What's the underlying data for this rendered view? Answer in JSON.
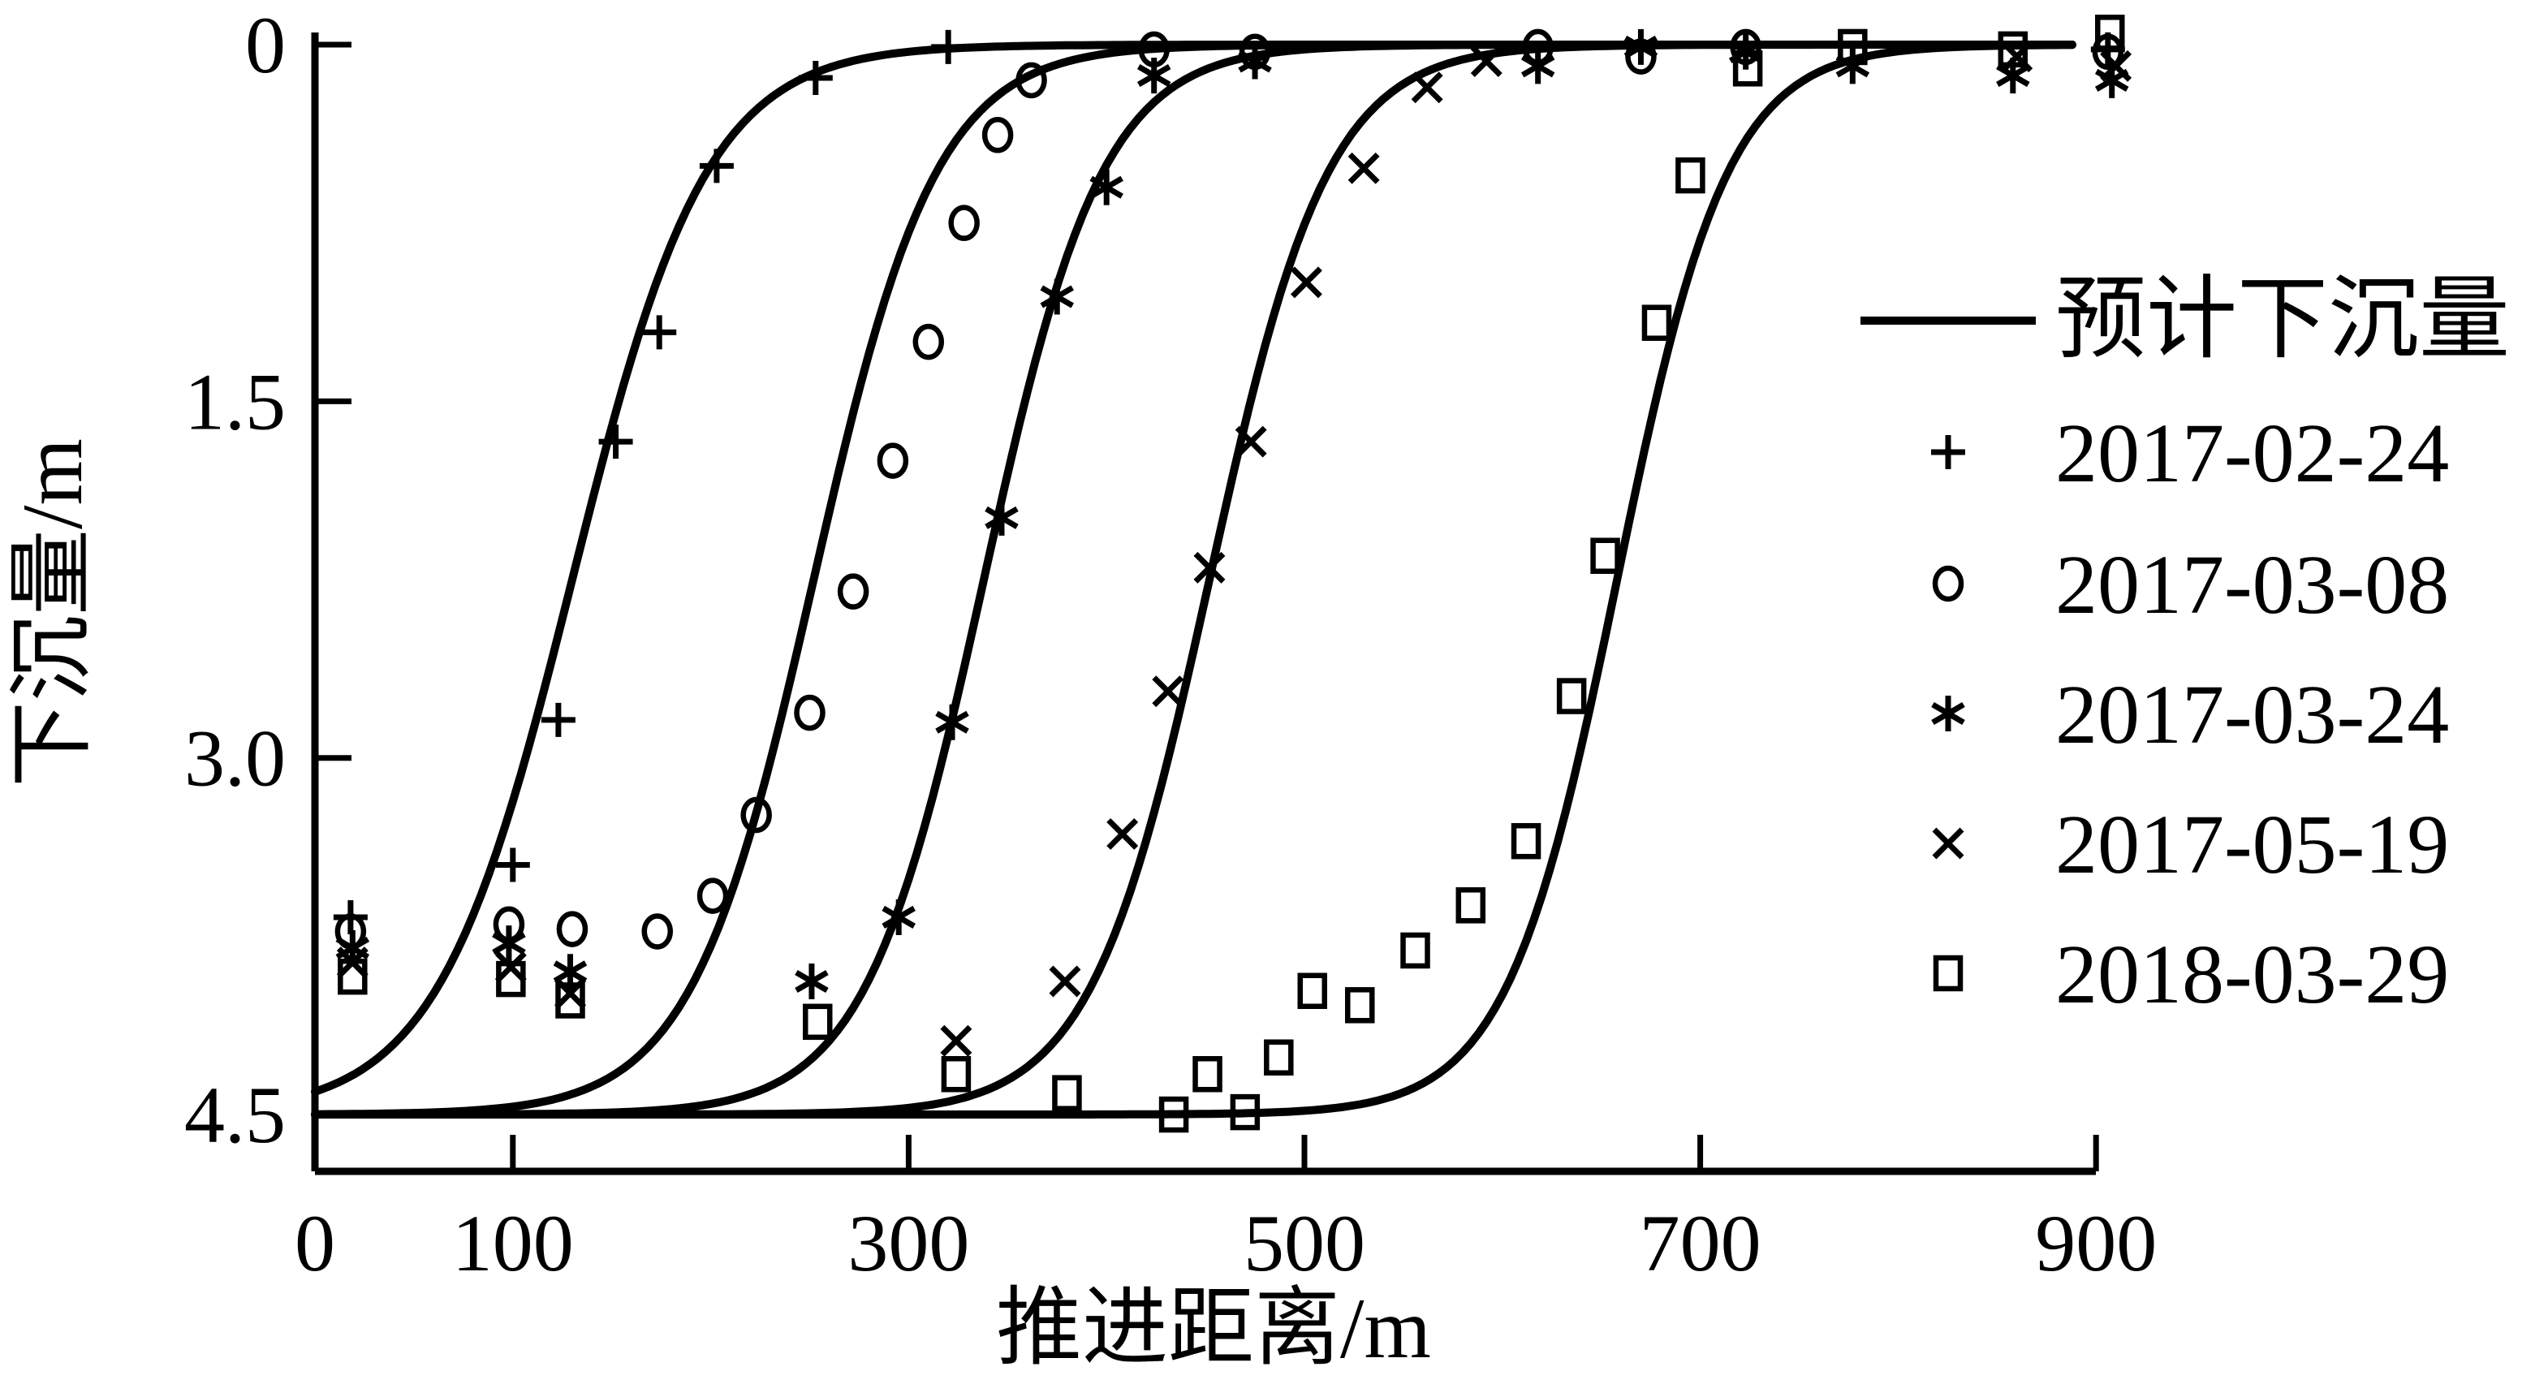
{
  "chart_data": {
    "type": "line",
    "title": "",
    "xlabel": "推进距离/m",
    "ylabel": "下沉量/m",
    "xlim": [
      0,
      910
    ],
    "ylim": [
      0,
      4.5
    ],
    "y_inverted": true,
    "grid": false,
    "legend_position": "right",
    "x_ticks": {
      "values": [
        0,
        100,
        300,
        500,
        700,
        900
      ],
      "labels": [
        "0",
        "100",
        "300",
        "500",
        "700",
        "900"
      ]
    },
    "y_ticks": {
      "values": [
        0,
        1.5,
        3.0,
        4.5
      ],
      "labels": [
        "0",
        "1.5",
        "3.0",
        "4.5"
      ]
    },
    "curves": {
      "name": "预计下沉量",
      "style": "solid",
      "amplitude": 4.5,
      "sigmoids": [
        {
          "x0": 130,
          "k": 34
        },
        {
          "x0": 252,
          "k": 31
        },
        {
          "x0": 338,
          "k": 30
        },
        {
          "x0": 452,
          "k": 30
        },
        {
          "x0": 658,
          "k": 28
        }
      ]
    },
    "series": [
      {
        "name": "2017-02-24",
        "marker": "plus",
        "points": [
          [
            18,
            3.67
          ],
          [
            100,
            3.45
          ],
          [
            123,
            2.84
          ],
          [
            152,
            1.67
          ],
          [
            174,
            1.21
          ],
          [
            203,
            0.51
          ],
          [
            253,
            0.14
          ],
          [
            320,
            0.01
          ],
          [
            906,
            0.02
          ]
        ]
      },
      {
        "name": "2017-03-08",
        "marker": "circle",
        "points": [
          [
            18,
            3.73
          ],
          [
            98,
            3.7
          ],
          [
            130,
            3.72
          ],
          [
            173,
            3.73
          ],
          [
            201,
            3.58
          ],
          [
            223,
            3.24
          ],
          [
            250,
            2.81
          ],
          [
            272,
            2.3
          ],
          [
            292,
            1.75
          ],
          [
            310,
            1.25
          ],
          [
            328,
            0.75
          ],
          [
            345,
            0.38
          ],
          [
            362,
            0.15
          ],
          [
            424,
            0.02
          ],
          [
            475,
            0.03
          ],
          [
            618,
            0.01
          ],
          [
            670,
            0.05
          ],
          [
            723,
            0.01
          ],
          [
            906,
            0.03
          ]
        ]
      },
      {
        "name": "2017-03-24",
        "marker": "asterisk",
        "points": [
          [
            19,
            3.8
          ],
          [
            98,
            3.78
          ],
          [
            129,
            3.9
          ],
          [
            251,
            3.94
          ],
          [
            295,
            3.67
          ],
          [
            322,
            2.85
          ],
          [
            347,
            1.99
          ],
          [
            375,
            1.06
          ],
          [
            400,
            0.6
          ],
          [
            424,
            0.13
          ],
          [
            475,
            0.07
          ],
          [
            618,
            0.09
          ],
          [
            670,
            0.01
          ],
          [
            723,
            0.03
          ],
          [
            777,
            0.09
          ],
          [
            858,
            0.13
          ],
          [
            908,
            0.15
          ]
        ]
      },
      {
        "name": "2017-05-19",
        "marker": "cross",
        "points": [
          [
            19,
            3.86
          ],
          [
            99,
            3.88
          ],
          [
            129,
            3.99
          ],
          [
            324,
            4.19
          ],
          [
            379,
            3.94
          ],
          [
            408,
            3.32
          ],
          [
            431,
            2.72
          ],
          [
            452,
            2.2
          ],
          [
            473,
            1.67
          ],
          [
            501,
            1.0
          ],
          [
            530,
            0.52
          ],
          [
            562,
            0.18
          ],
          [
            592,
            0.07
          ],
          [
            860,
            0.05
          ],
          [
            910,
            0.09
          ]
        ]
      },
      {
        "name": "2018-03-29",
        "marker": "square",
        "points": [
          [
            19,
            3.92
          ],
          [
            99,
            3.93
          ],
          [
            129,
            4.02
          ],
          [
            254,
            4.11
          ],
          [
            324,
            4.33
          ],
          [
            380,
            4.41
          ],
          [
            434,
            4.5
          ],
          [
            451,
            4.33
          ],
          [
            470,
            4.49
          ],
          [
            487,
            4.26
          ],
          [
            504,
            3.98
          ],
          [
            528,
            4.04
          ],
          [
            556,
            3.81
          ],
          [
            584,
            3.62
          ],
          [
            612,
            3.35
          ],
          [
            635,
            2.74
          ],
          [
            652,
            2.15
          ],
          [
            678,
            1.17
          ],
          [
            695,
            0.55
          ],
          [
            724,
            0.1
          ],
          [
            777,
            0.01
          ],
          [
            858,
            0.02
          ],
          [
            907,
            -0.05
          ]
        ]
      }
    ],
    "legend": [
      {
        "sample": "line",
        "label": "预计下沉量"
      },
      {
        "sample": "plus",
        "label": "2017-02-24"
      },
      {
        "sample": "circle",
        "label": "2017-03-08"
      },
      {
        "sample": "asterisk",
        "label": "2017-03-24"
      },
      {
        "sample": "cross",
        "label": "2017-05-19"
      },
      {
        "sample": "square",
        "label": "2018-03-29"
      }
    ]
  }
}
